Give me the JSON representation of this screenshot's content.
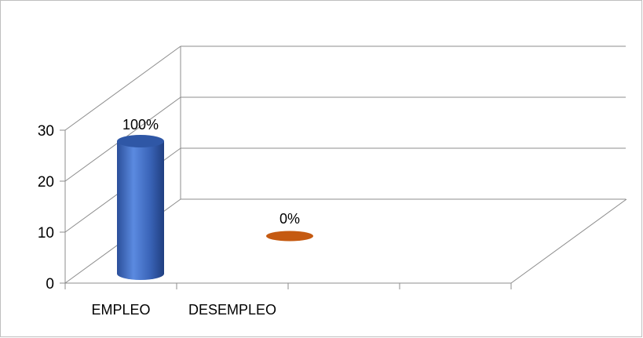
{
  "chart_data": {
    "type": "bar",
    "style": "3d-cylinder",
    "categories": [
      "EMPLEO",
      "DESEMPLEO"
    ],
    "values": [
      26,
      0
    ],
    "data_labels": [
      "100%",
      "0%"
    ],
    "ylim": [
      0,
      30
    ],
    "yticks": [
      "0",
      "10",
      "20",
      "30"
    ],
    "grid": true,
    "legend": "none",
    "colors": {
      "EMPLEO": "#4472c4",
      "DESEMPLEO": "#c55a11",
      "gridline": "#8c8c8c",
      "frame": "#bfbfbf"
    }
  }
}
